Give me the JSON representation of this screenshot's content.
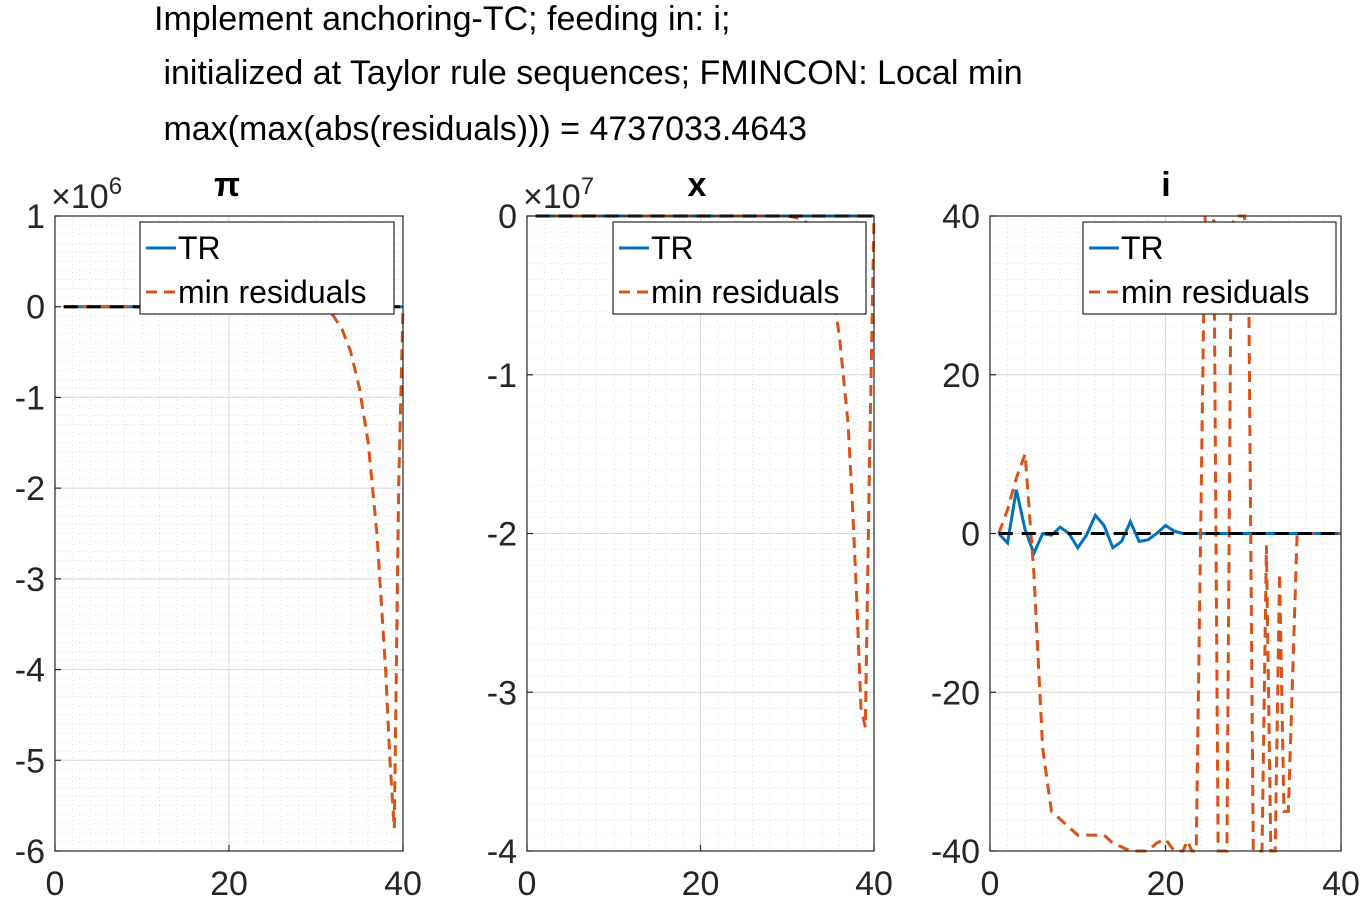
{
  "figure": {
    "title_lines": [
      "Implement anchoring-TC; feeding in: i;",
      " initialized at Taylor rule sequences; FMINCON: Local min",
      " max(max(abs(residuals))) = 4737033.4643"
    ]
  },
  "colors": {
    "tr": "#0072BD",
    "min_residuals": "#D95319",
    "zero_line": "#000000",
    "grid": "#DFDFDF",
    "axes": "#262626"
  },
  "chart_data": [
    {
      "type": "line",
      "title": "π",
      "exponent_label": "×10",
      "exponent_power": "6",
      "xlim": [
        0,
        40
      ],
      "ylim": [
        -6,
        1
      ],
      "xticks": [
        0,
        20,
        40
      ],
      "yticks": [
        1,
        0,
        -1,
        -2,
        -3,
        -4,
        -5,
        -6
      ],
      "grid": true,
      "legend": "top-right",
      "series": [
        {
          "name": "TR",
          "style": "solid",
          "x": [
            1,
            40
          ],
          "y": [
            0,
            0
          ]
        },
        {
          "name": "min residuals",
          "style": "dashed",
          "x": [
            1,
            30,
            31,
            32,
            33,
            34,
            35,
            36,
            37,
            38,
            38.5,
            39,
            39.5,
            40
          ],
          "y": [
            0,
            0,
            -0.02,
            -0.1,
            -0.25,
            -0.5,
            -0.9,
            -1.5,
            -2.5,
            -4.0,
            -5.0,
            -5.75,
            -2.0,
            0
          ]
        },
        {
          "name": "",
          "style": "zero-line",
          "x": [
            1,
            40
          ],
          "y": [
            0,
            0
          ]
        }
      ]
    },
    {
      "type": "line",
      "title": "x",
      "exponent_label": "×10",
      "exponent_power": "7",
      "xlim": [
        0,
        40
      ],
      "ylim": [
        -4,
        0
      ],
      "xticks": [
        0,
        20,
        40
      ],
      "yticks": [
        0,
        -1,
        -2,
        -3,
        -4
      ],
      "grid": true,
      "legend": "top-right",
      "series": [
        {
          "name": "TR",
          "style": "solid",
          "x": [
            1,
            40
          ],
          "y": [
            0,
            0
          ]
        },
        {
          "name": "min residuals",
          "style": "dashed",
          "x": [
            1,
            30,
            31,
            32,
            33,
            34,
            35,
            36,
            37,
            37.5,
            38,
            38.5,
            39,
            39.5,
            40
          ],
          "y": [
            0,
            0,
            -0.01,
            -0.03,
            -0.08,
            -0.2,
            -0.4,
            -0.75,
            -1.3,
            -1.8,
            -2.4,
            -3.1,
            -3.22,
            -1.5,
            0
          ]
        },
        {
          "name": "",
          "style": "zero-line",
          "x": [
            1,
            40
          ],
          "y": [
            0,
            0
          ]
        }
      ]
    },
    {
      "type": "line",
      "title": "i",
      "exponent_label": "",
      "exponent_power": "",
      "xlim": [
        0,
        40
      ],
      "ylim": [
        -40,
        40
      ],
      "xticks": [
        0,
        20,
        40
      ],
      "yticks": [
        40,
        20,
        0,
        -20,
        -40
      ],
      "grid": true,
      "legend": "top-right",
      "series": [
        {
          "name": "TR",
          "style": "solid",
          "x": [
            1,
            2,
            3,
            4,
            5,
            6,
            7,
            8,
            9,
            10,
            11,
            12,
            13,
            14,
            15,
            16,
            17,
            18,
            19,
            20,
            21,
            22,
            24,
            26,
            30,
            35,
            40
          ],
          "y": [
            0,
            -1.2,
            5.5,
            0.5,
            -2.5,
            0,
            -0.2,
            0.8,
            0,
            -1.8,
            -0.2,
            2.3,
            1,
            -1.8,
            -1,
            1.5,
            -1,
            -0.8,
            0,
            1,
            0.3,
            0,
            0,
            0,
            0,
            0,
            0
          ]
        },
        {
          "name": "min residuals",
          "style": "dashed",
          "x": [
            1,
            2,
            3,
            4,
            5,
            6,
            7,
            8,
            9,
            10,
            11,
            12,
            13,
            14,
            15,
            16,
            17,
            18,
            19,
            20,
            21,
            22,
            22.5,
            23,
            23.5,
            24,
            24.5,
            25,
            25.5,
            26,
            26.5,
            27,
            27.5,
            28,
            28.5,
            29,
            29.5,
            30,
            30.5,
            31,
            31.5,
            32,
            32.5,
            33,
            33.5,
            34,
            35,
            40
          ],
          "y": [
            0,
            3,
            7,
            10,
            -5,
            -27,
            -35,
            -36,
            -37,
            -38,
            -38,
            -38,
            -38,
            -39,
            -39.5,
            -40,
            -40,
            -40,
            -39,
            -38.5,
            -40,
            -40,
            -38.7,
            -40,
            -40,
            -0.5,
            40,
            30,
            40,
            -40,
            -40,
            -40,
            38.7,
            40,
            40,
            40,
            29,
            -40,
            -40,
            -40,
            -1.5,
            -40,
            -40,
            -5,
            -35,
            -35,
            0,
            0
          ]
        },
        {
          "name": "",
          "style": "zero-line",
          "x": [
            1,
            40
          ],
          "y": [
            0,
            0
          ]
        }
      ]
    }
  ]
}
